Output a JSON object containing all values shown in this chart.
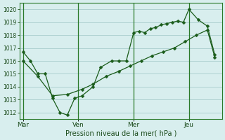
{
  "xlabel": "Pression niveau de la mer( hPa )",
  "background_color": "#d8eeee",
  "grid_color": "#a8cccc",
  "line_color": "#1a5c1a",
  "figsize": [
    3.2,
    2.0
  ],
  "dpi": 100,
  "ylim": [
    1011.5,
    1020.5
  ],
  "yticks": [
    1012,
    1013,
    1014,
    1015,
    1016,
    1017,
    1018,
    1019,
    1020
  ],
  "day_positions": [
    0,
    3,
    6,
    9
  ],
  "day_labels": [
    "Mar",
    "Ven",
    "Mer",
    "Jeu"
  ],
  "xlim": [
    -0.2,
    10.8
  ],
  "upper_x": [
    0.0,
    0.4,
    0.8,
    1.2,
    1.6,
    2.0,
    2.4,
    2.8,
    3.2,
    3.8,
    4.2,
    4.8,
    5.2,
    5.6,
    6.0,
    6.3,
    6.6,
    6.9,
    7.2,
    7.5,
    7.8,
    8.1,
    8.4,
    8.7,
    9.0,
    9.5,
    10.0,
    10.4
  ],
  "upper_y": [
    1016.7,
    1016.0,
    1015.0,
    1015.0,
    1013.1,
    1012.0,
    1011.8,
    1013.1,
    1013.3,
    1014.0,
    1015.5,
    1016.0,
    1016.0,
    1016.0,
    1018.2,
    1018.3,
    1018.2,
    1018.5,
    1018.6,
    1018.8,
    1018.9,
    1019.0,
    1019.1,
    1019.0,
    1020.0,
    1019.2,
    1018.7,
    1016.5
  ],
  "lower_x": [
    0.0,
    0.8,
    1.6,
    2.4,
    3.2,
    3.8,
    4.5,
    5.2,
    5.8,
    6.4,
    7.0,
    7.6,
    8.2,
    8.8,
    9.4,
    10.0,
    10.4
  ],
  "lower_y": [
    1016.0,
    1014.8,
    1013.3,
    1013.4,
    1013.8,
    1014.2,
    1014.8,
    1015.2,
    1015.6,
    1016.0,
    1016.4,
    1016.7,
    1017.0,
    1017.5,
    1018.0,
    1018.4,
    1016.3
  ]
}
